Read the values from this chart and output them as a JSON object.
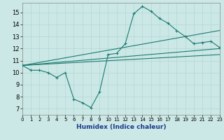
{
  "xlabel": "Humidex (Indice chaleur)",
  "xlim": [
    0,
    23
  ],
  "ylim": [
    6.5,
    15.8
  ],
  "yticks": [
    7,
    8,
    9,
    10,
    11,
    12,
    13,
    14,
    15
  ],
  "xticks": [
    0,
    1,
    2,
    3,
    4,
    5,
    6,
    7,
    8,
    9,
    10,
    11,
    12,
    13,
    14,
    15,
    16,
    17,
    18,
    19,
    20,
    21,
    22,
    23
  ],
  "bg_color": "#cce8e6",
  "line_color": "#1c7a70",
  "grid_color": "#b0d8d4",
  "line1_x": [
    0,
    1,
    2,
    3,
    4,
    5,
    6,
    7,
    8,
    9,
    10,
    11,
    12,
    13,
    14,
    15,
    16,
    17,
    18,
    19,
    20,
    21,
    22,
    23
  ],
  "line1_y": [
    10.6,
    10.2,
    10.2,
    10.0,
    9.6,
    10.0,
    7.8,
    7.5,
    7.1,
    8.4,
    11.5,
    11.6,
    12.4,
    14.9,
    15.5,
    15.1,
    14.5,
    14.1,
    13.5,
    13.0,
    12.4,
    12.5,
    12.6,
    12.1
  ],
  "line2_x": [
    0,
    23
  ],
  "line2_y": [
    10.6,
    12.0
  ],
  "line3_x": [
    0,
    23
  ],
  "line3_y": [
    10.6,
    11.5
  ],
  "line4_x": [
    0,
    23
  ],
  "line4_y": [
    10.6,
    13.5
  ],
  "marker": "+"
}
